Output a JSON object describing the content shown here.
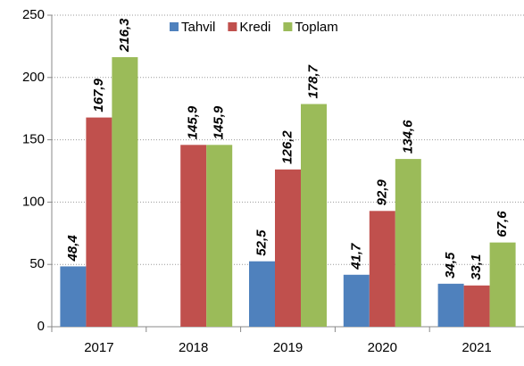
{
  "chart_data": {
    "type": "bar",
    "categories": [
      "2017",
      "2018",
      "2019",
      "2020",
      "2021"
    ],
    "series": [
      {
        "name": "Tahvil",
        "color": "#4f81bd",
        "values": [
          48.4,
          null,
          52.5,
          41.7,
          34.5
        ],
        "value_labels": [
          "48,4",
          null,
          "52,5",
          "41,7",
          "34,5"
        ]
      },
      {
        "name": "Kredi",
        "color": "#c0504d",
        "values": [
          167.9,
          145.9,
          126.2,
          92.9,
          33.1
        ],
        "value_labels": [
          "167,9",
          "145,9",
          "126,2",
          "92,9",
          "33,1"
        ]
      },
      {
        "name": "Toplam",
        "color": "#9bbb59",
        "values": [
          216.3,
          145.9,
          178.7,
          134.6,
          67.6
        ],
        "value_labels": [
          "216,3",
          "145,9",
          "178,7",
          "134,6",
          "67,6"
        ]
      }
    ],
    "ylim": [
      0,
      250
    ],
    "yticks": [
      0,
      50,
      100,
      150,
      200,
      250
    ],
    "grid": true,
    "legend": "top"
  }
}
